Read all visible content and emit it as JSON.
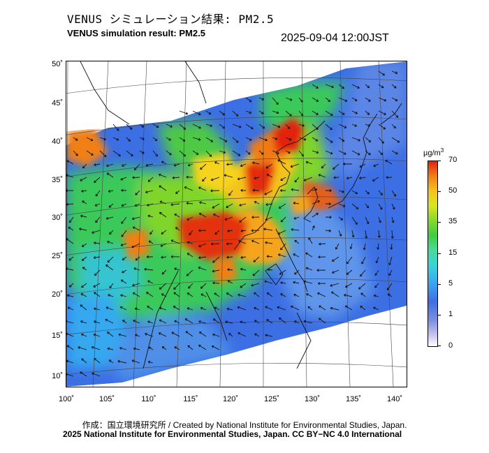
{
  "title_ja": "VENUS シミュレーション結果: PM2.5",
  "title_en": "VENUS simulation result: PM2.5",
  "timestamp": "2025-09-04 12:00JST",
  "y_axis_ticks": [
    "50˚",
    "45˚",
    "40˚",
    "35˚",
    "30˚",
    "25˚",
    "20˚",
    "15˚",
    "10˚"
  ],
  "x_axis_ticks": [
    "100˚",
    "105˚",
    "110˚",
    "115˚",
    "120˚",
    "125˚",
    "130˚",
    "135˚",
    "140˚"
  ],
  "colorbar": {
    "unit_label": "µg/m",
    "unit_superscript": "3",
    "ticks": [
      "70",
      "50",
      "35",
      "15",
      "5",
      "1",
      "0"
    ],
    "colors": [
      "#ffffff",
      "#7b8fe0",
      "#3f6ee6",
      "#3aa6f2",
      "#36d6d8",
      "#3fce3f",
      "#d9e61f",
      "#f07f16",
      "#e3200f"
    ]
  },
  "credit_line1": "作成：国立環境研究所 / Created by National Institute for Environmental Studies, Japan.",
  "credit_line2": "2025 National Institute for Environmental Studies, Japan. CC BY−NC 4.0 International"
}
